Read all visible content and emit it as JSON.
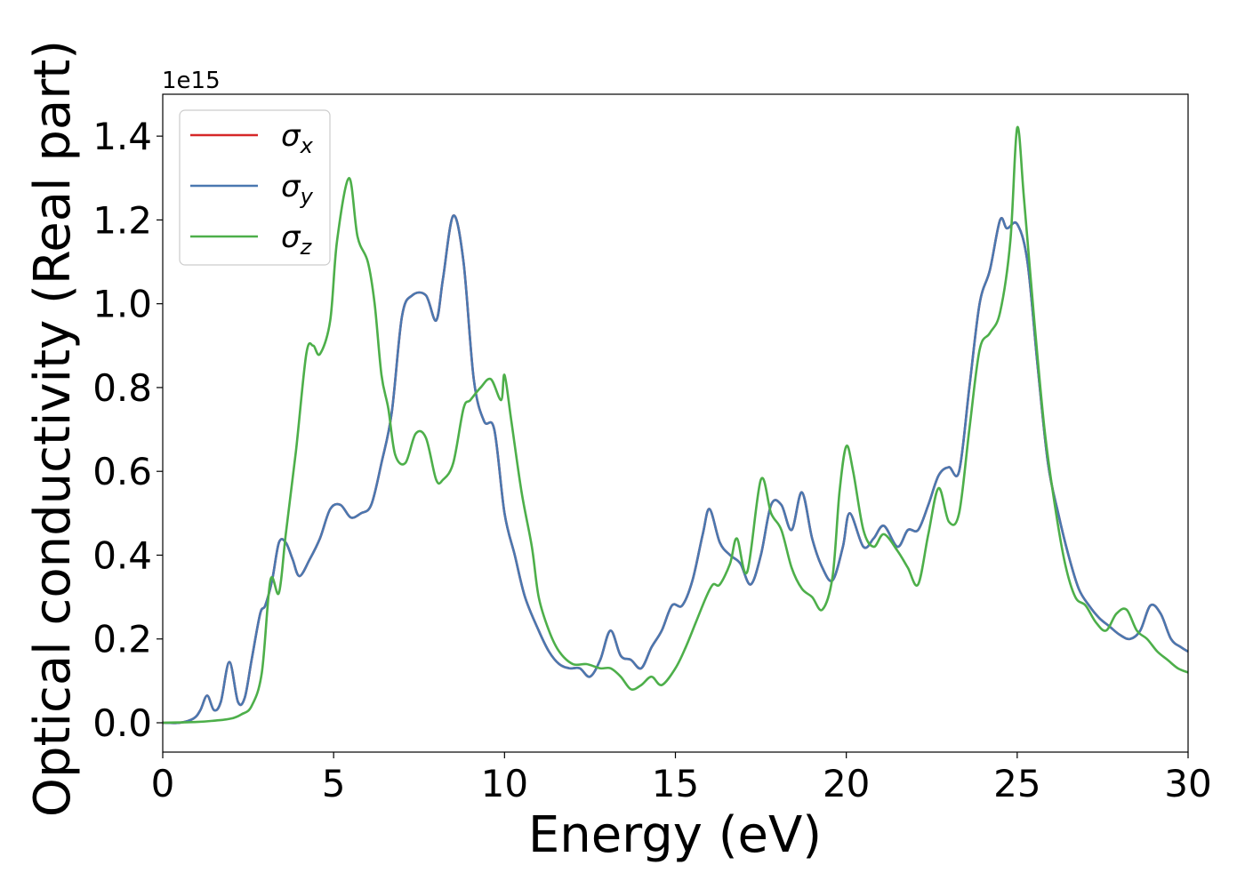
{
  "chart_data": {
    "type": "line",
    "xlabel": "Energy (eV)",
    "ylabel": "Optical conductivity (Real part)",
    "y_offset_label": "1e15",
    "xlim": [
      0,
      30
    ],
    "ylim": [
      -0.07,
      1.5
    ],
    "x_ticks": [
      0,
      5,
      10,
      15,
      20,
      25,
      30
    ],
    "x_tick_labels": [
      "0",
      "5",
      "10",
      "15",
      "20",
      "25",
      "30"
    ],
    "y_ticks": [
      0.0,
      0.2,
      0.4,
      0.6,
      0.8,
      1.0,
      1.2,
      1.4
    ],
    "y_tick_labels": [
      "0.0",
      "0.2",
      "0.4",
      "0.6",
      "0.8",
      "1.0",
      "1.2",
      "1.4"
    ],
    "grid": false,
    "legend_position": "top-left",
    "series": [
      {
        "name": "σx",
        "legend_symbol": "σ",
        "legend_sub": "x",
        "color": "#d62728",
        "x": [
          0,
          0.5,
          0.9,
          1.1,
          1.3,
          1.5,
          1.7,
          1.95,
          2.2,
          2.4,
          2.6,
          2.85,
          3.0,
          3.2,
          3.4,
          3.6,
          3.8,
          4.0,
          4.3,
          4.6,
          4.9,
          5.2,
          5.5,
          5.8,
          6.1,
          6.4,
          6.7,
          7.0,
          7.3,
          7.7,
          8.0,
          8.2,
          8.5,
          8.8,
          9.1,
          9.4,
          9.7,
          10.0,
          10.3,
          10.6,
          11.0,
          11.3,
          11.6,
          11.9,
          12.2,
          12.5,
          12.8,
          13.1,
          13.4,
          13.7,
          14.0,
          14.3,
          14.6,
          14.9,
          15.2,
          15.5,
          15.8,
          16.0,
          16.3,
          16.6,
          16.9,
          17.2,
          17.5,
          17.8,
          18.1,
          18.4,
          18.7,
          19.0,
          19.3,
          19.6,
          19.9,
          20.1,
          20.5,
          20.8,
          21.1,
          21.5,
          21.8,
          22.1,
          22.4,
          22.7,
          23.0,
          23.3,
          23.6,
          23.9,
          24.2,
          24.5,
          24.7,
          25.0,
          25.3,
          25.6,
          25.9,
          26.2,
          26.5,
          26.8,
          27.1,
          27.4,
          27.7,
          28.0,
          28.3,
          28.6,
          28.9,
          29.2,
          29.5,
          29.8,
          30.0
        ],
        "y": [
          0.0,
          0.0,
          0.01,
          0.03,
          0.065,
          0.03,
          0.05,
          0.145,
          0.05,
          0.06,
          0.15,
          0.26,
          0.28,
          0.34,
          0.43,
          0.43,
          0.39,
          0.35,
          0.39,
          0.44,
          0.51,
          0.52,
          0.49,
          0.5,
          0.52,
          0.62,
          0.74,
          0.97,
          1.02,
          1.02,
          0.96,
          1.06,
          1.21,
          1.1,
          0.82,
          0.72,
          0.7,
          0.5,
          0.4,
          0.3,
          0.22,
          0.17,
          0.14,
          0.13,
          0.13,
          0.11,
          0.15,
          0.22,
          0.16,
          0.15,
          0.13,
          0.18,
          0.22,
          0.28,
          0.28,
          0.34,
          0.45,
          0.51,
          0.43,
          0.4,
          0.38,
          0.33,
          0.4,
          0.52,
          0.52,
          0.46,
          0.55,
          0.44,
          0.37,
          0.34,
          0.42,
          0.5,
          0.42,
          0.44,
          0.47,
          0.42,
          0.46,
          0.46,
          0.52,
          0.59,
          0.61,
          0.6,
          0.8,
          1.0,
          1.08,
          1.2,
          1.18,
          1.19,
          1.1,
          0.85,
          0.62,
          0.5,
          0.4,
          0.32,
          0.28,
          0.25,
          0.23,
          0.21,
          0.2,
          0.22,
          0.28,
          0.26,
          0.2,
          0.18,
          0.17
        ]
      },
      {
        "name": "σy",
        "legend_symbol": "σ",
        "legend_sub": "y",
        "color": "#4a78b0",
        "x": [
          0,
          0.5,
          0.9,
          1.1,
          1.3,
          1.5,
          1.7,
          1.95,
          2.2,
          2.4,
          2.6,
          2.85,
          3.0,
          3.2,
          3.4,
          3.6,
          3.8,
          4.0,
          4.3,
          4.6,
          4.9,
          5.2,
          5.5,
          5.8,
          6.1,
          6.4,
          6.7,
          7.0,
          7.3,
          7.7,
          8.0,
          8.2,
          8.5,
          8.8,
          9.1,
          9.4,
          9.7,
          10.0,
          10.3,
          10.6,
          11.0,
          11.3,
          11.6,
          11.9,
          12.2,
          12.5,
          12.8,
          13.1,
          13.4,
          13.7,
          14.0,
          14.3,
          14.6,
          14.9,
          15.2,
          15.5,
          15.8,
          16.0,
          16.3,
          16.6,
          16.9,
          17.2,
          17.5,
          17.8,
          18.1,
          18.4,
          18.7,
          19.0,
          19.3,
          19.6,
          19.9,
          20.1,
          20.5,
          20.8,
          21.1,
          21.5,
          21.8,
          22.1,
          22.4,
          22.7,
          23.0,
          23.3,
          23.6,
          23.9,
          24.2,
          24.5,
          24.7,
          25.0,
          25.3,
          25.6,
          25.9,
          26.2,
          26.5,
          26.8,
          27.1,
          27.4,
          27.7,
          28.0,
          28.3,
          28.6,
          28.9,
          29.2,
          29.5,
          29.8,
          30.0
        ],
        "y": [
          0.0,
          0.0,
          0.01,
          0.03,
          0.065,
          0.03,
          0.05,
          0.145,
          0.05,
          0.06,
          0.15,
          0.26,
          0.28,
          0.34,
          0.43,
          0.43,
          0.39,
          0.35,
          0.39,
          0.44,
          0.51,
          0.52,
          0.49,
          0.5,
          0.52,
          0.62,
          0.74,
          0.97,
          1.02,
          1.02,
          0.96,
          1.06,
          1.21,
          1.1,
          0.82,
          0.72,
          0.7,
          0.5,
          0.4,
          0.3,
          0.22,
          0.17,
          0.14,
          0.13,
          0.13,
          0.11,
          0.15,
          0.22,
          0.16,
          0.15,
          0.13,
          0.18,
          0.22,
          0.28,
          0.28,
          0.34,
          0.45,
          0.51,
          0.43,
          0.4,
          0.38,
          0.33,
          0.4,
          0.52,
          0.52,
          0.46,
          0.55,
          0.44,
          0.37,
          0.34,
          0.42,
          0.5,
          0.42,
          0.44,
          0.47,
          0.42,
          0.46,
          0.46,
          0.52,
          0.59,
          0.61,
          0.6,
          0.8,
          1.0,
          1.08,
          1.2,
          1.18,
          1.19,
          1.1,
          0.85,
          0.62,
          0.5,
          0.4,
          0.32,
          0.28,
          0.25,
          0.23,
          0.21,
          0.2,
          0.22,
          0.28,
          0.26,
          0.2,
          0.18,
          0.17
        ]
      },
      {
        "name": "σz",
        "legend_symbol": "σ",
        "legend_sub": "z",
        "color": "#4daf4a",
        "x": [
          0,
          1.0,
          1.5,
          2.0,
          2.3,
          2.6,
          2.9,
          3.15,
          3.4,
          3.6,
          3.9,
          4.2,
          4.4,
          4.6,
          4.9,
          5.1,
          5.45,
          5.7,
          6.0,
          6.2,
          6.4,
          6.6,
          6.8,
          7.1,
          7.4,
          7.7,
          8.0,
          8.2,
          8.5,
          8.8,
          9.0,
          9.3,
          9.6,
          9.9,
          10.0,
          10.2,
          10.5,
          10.8,
          11.0,
          11.3,
          11.6,
          12.0,
          12.4,
          12.8,
          13.1,
          13.4,
          13.7,
          14.0,
          14.3,
          14.6,
          15.0,
          15.3,
          15.6,
          15.9,
          16.1,
          16.3,
          16.6,
          16.8,
          17.1,
          17.5,
          17.8,
          18.1,
          18.4,
          18.7,
          19.0,
          19.3,
          19.6,
          19.8,
          20.0,
          20.2,
          20.5,
          20.8,
          21.1,
          21.5,
          21.8,
          22.1,
          22.4,
          22.7,
          23.0,
          23.3,
          23.6,
          23.9,
          24.2,
          24.5,
          24.8,
          25.0,
          25.2,
          25.5,
          25.8,
          26.1,
          26.4,
          26.7,
          27.0,
          27.3,
          27.6,
          27.9,
          28.2,
          28.5,
          28.8,
          29.1,
          29.4,
          29.7,
          30.0
        ],
        "y": [
          0.0,
          0.002,
          0.005,
          0.01,
          0.02,
          0.04,
          0.12,
          0.34,
          0.31,
          0.45,
          0.65,
          0.88,
          0.9,
          0.88,
          0.96,
          1.15,
          1.3,
          1.16,
          1.1,
          1.0,
          0.83,
          0.75,
          0.64,
          0.62,
          0.69,
          0.68,
          0.58,
          0.58,
          0.62,
          0.75,
          0.77,
          0.8,
          0.82,
          0.77,
          0.83,
          0.72,
          0.55,
          0.42,
          0.3,
          0.22,
          0.17,
          0.14,
          0.14,
          0.13,
          0.13,
          0.11,
          0.08,
          0.09,
          0.11,
          0.09,
          0.13,
          0.18,
          0.24,
          0.3,
          0.33,
          0.33,
          0.38,
          0.44,
          0.36,
          0.58,
          0.5,
          0.46,
          0.37,
          0.32,
          0.3,
          0.27,
          0.35,
          0.55,
          0.66,
          0.6,
          0.46,
          0.42,
          0.45,
          0.41,
          0.37,
          0.33,
          0.45,
          0.56,
          0.48,
          0.5,
          0.7,
          0.89,
          0.93,
          0.98,
          1.15,
          1.42,
          1.25,
          0.96,
          0.7,
          0.52,
          0.38,
          0.3,
          0.28,
          0.24,
          0.22,
          0.26,
          0.27,
          0.22,
          0.2,
          0.17,
          0.15,
          0.13,
          0.12
        ]
      }
    ]
  }
}
